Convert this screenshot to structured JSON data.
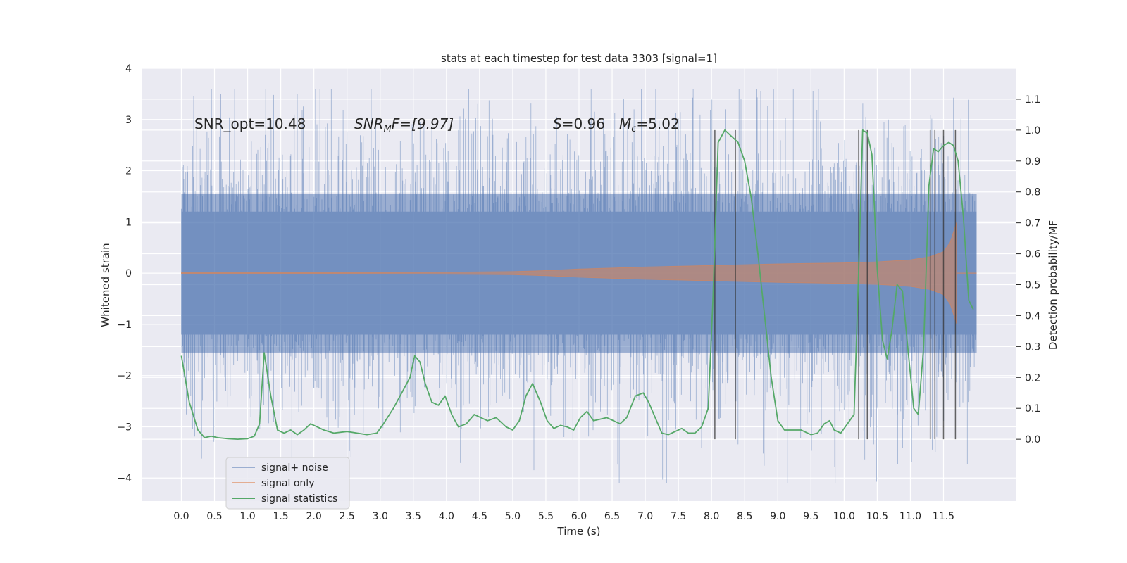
{
  "chart_data": {
    "type": "line",
    "title": "stats at each timestep for test data 3303 [signal=1]",
    "xlabel": "Time (s)",
    "ylabel": "Whitened strain",
    "ylabel_right": "Detection probability/MF",
    "xlim": [
      -0.6,
      12.6
    ],
    "ylim": [
      -4.45,
      4.0
    ],
    "ylim_right": [
      -0.2,
      1.2
    ],
    "x_ticks": [
      "0.0",
      "0.5",
      "1.0",
      "1.5",
      "2.0",
      "2.5",
      "3.0",
      "3.5",
      "4.0",
      "4.5",
      "5.0",
      "5.5",
      "6.0",
      "6.5",
      "7.0",
      "7.5",
      "8.0",
      "8.5",
      "9.0",
      "9.5",
      "10.0",
      "10.5",
      "11.0",
      "11.5"
    ],
    "y_ticks": [
      "4",
      "3",
      "2",
      "1",
      "0",
      "−1",
      "−2",
      "−3",
      "−4"
    ],
    "y_ticks_right": [
      "1.1",
      "1.0",
      "0.9",
      "0.8",
      "0.7",
      "0.6",
      "0.5",
      "0.4",
      "0.3",
      "0.2",
      "0.1",
      "0.0"
    ],
    "annotations": {
      "snr_opt": "SNR_opt=10.48",
      "snr_mf_label": "SNR",
      "snr_mf_sub": "M",
      "snr_mf_rest": "F=[9.97]",
      "s_label": "S",
      "s_value": "=0.96",
      "mc_label": "M",
      "mc_sub": "c",
      "mc_value": "=5.02"
    },
    "series": [
      {
        "name": "signal+ noise",
        "color": "#4c72b0",
        "kind": "noise-band",
        "x_range": [
          0.0,
          12.0
        ],
        "sigma": 0.75
      },
      {
        "name": "signal only",
        "color": "#dd8452",
        "kind": "chirp-envelope",
        "x": [
          0.0,
          2.0,
          4.0,
          5.0,
          5.5,
          6.0,
          7.0,
          8.0,
          9.0,
          10.0,
          10.5,
          11.0,
          11.3,
          11.5,
          11.6,
          11.7
        ],
        "amplitude": [
          0.01,
          0.01,
          0.02,
          0.03,
          0.05,
          0.08,
          0.12,
          0.15,
          0.18,
          0.2,
          0.22,
          0.26,
          0.32,
          0.42,
          0.6,
          1.0
        ]
      },
      {
        "name": "signal statistics",
        "color": "#55a868",
        "kind": "line",
        "axis": "right",
        "x": [
          0.0,
          0.12,
          0.25,
          0.35,
          0.45,
          0.55,
          0.7,
          0.85,
          1.0,
          1.1,
          1.18,
          1.25,
          1.35,
          1.45,
          1.55,
          1.65,
          1.75,
          1.85,
          1.95,
          2.05,
          2.15,
          2.3,
          2.5,
          2.65,
          2.8,
          2.95,
          3.05,
          3.2,
          3.35,
          3.45,
          3.52,
          3.6,
          3.68,
          3.78,
          3.88,
          3.98,
          4.08,
          4.18,
          4.3,
          4.42,
          4.52,
          4.62,
          4.75,
          4.9,
          5.0,
          5.1,
          5.2,
          5.3,
          5.42,
          5.52,
          5.62,
          5.72,
          5.82,
          5.92,
          6.02,
          6.12,
          6.22,
          6.32,
          6.42,
          6.52,
          6.62,
          6.72,
          6.85,
          6.97,
          7.05,
          7.15,
          7.25,
          7.35,
          7.45,
          7.55,
          7.65,
          7.75,
          7.85,
          7.95,
          8.02,
          8.1,
          8.2,
          8.3,
          8.4,
          8.5,
          8.6,
          8.7,
          8.8,
          8.9,
          9.0,
          9.1,
          9.2,
          9.35,
          9.5,
          9.6,
          9.7,
          9.78,
          9.85,
          9.95,
          10.05,
          10.15,
          10.22,
          10.28,
          10.35,
          10.42,
          10.5,
          10.58,
          10.65,
          10.72,
          10.8,
          10.88,
          10.95,
          11.05,
          11.12,
          11.2,
          11.28,
          11.35,
          11.42,
          11.5,
          11.58,
          11.65,
          11.72,
          11.8,
          11.88,
          11.95
        ],
        "y": [
          0.27,
          0.12,
          0.03,
          0.005,
          0.01,
          0.005,
          0.002,
          0.0,
          0.002,
          0.01,
          0.05,
          0.28,
          0.14,
          0.03,
          0.02,
          0.03,
          0.015,
          0.03,
          0.05,
          0.04,
          0.03,
          0.02,
          0.025,
          0.02,
          0.015,
          0.02,
          0.05,
          0.1,
          0.16,
          0.2,
          0.27,
          0.25,
          0.18,
          0.12,
          0.11,
          0.14,
          0.08,
          0.04,
          0.05,
          0.08,
          0.07,
          0.06,
          0.07,
          0.04,
          0.03,
          0.06,
          0.14,
          0.18,
          0.12,
          0.06,
          0.035,
          0.045,
          0.04,
          0.03,
          0.07,
          0.09,
          0.06,
          0.065,
          0.07,
          0.06,
          0.05,
          0.07,
          0.14,
          0.15,
          0.12,
          0.07,
          0.02,
          0.015,
          0.025,
          0.035,
          0.02,
          0.02,
          0.04,
          0.1,
          0.45,
          0.96,
          1.0,
          0.98,
          0.96,
          0.9,
          0.78,
          0.6,
          0.4,
          0.2,
          0.06,
          0.03,
          0.03,
          0.03,
          0.015,
          0.02,
          0.05,
          0.06,
          0.03,
          0.02,
          0.05,
          0.08,
          0.55,
          1.0,
          0.99,
          0.92,
          0.55,
          0.32,
          0.26,
          0.35,
          0.5,
          0.48,
          0.32,
          0.1,
          0.08,
          0.3,
          0.82,
          0.94,
          0.93,
          0.95,
          0.96,
          0.95,
          0.9,
          0.72,
          0.45,
          0.42
        ]
      }
    ],
    "vertical_lines_x": [
      8.05,
      8.36,
      10.22,
      10.35,
      11.3,
      11.37,
      11.5,
      11.68
    ],
    "legend": [
      "signal+ noise",
      "signal only",
      "signal statistics"
    ],
    "legend_position": "lower-left",
    "grid": true,
    "background": "#eaeaf2"
  }
}
